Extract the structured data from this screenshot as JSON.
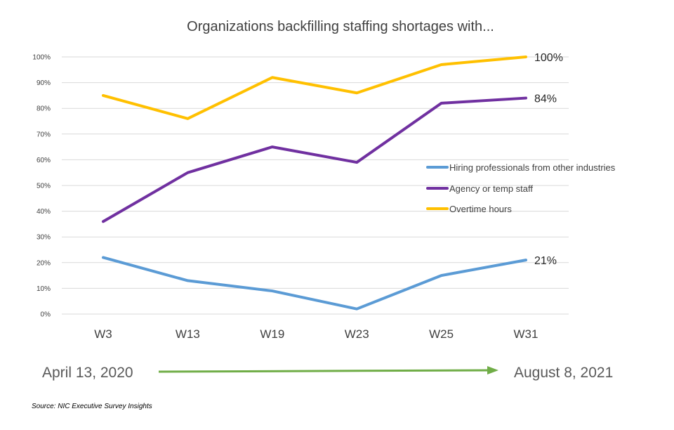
{
  "chart_data": {
    "type": "line",
    "title": "Organizations backfilling staffing shortages with...",
    "categories": [
      "W3",
      "W13",
      "W19",
      "W23",
      "W25",
      "W31"
    ],
    "y_ticks": [
      "0%",
      "10%",
      "20%",
      "30%",
      "40%",
      "50%",
      "60%",
      "70%",
      "80%",
      "90%",
      "100%"
    ],
    "ylim": [
      0,
      100
    ],
    "grid": true,
    "legend_position": "right",
    "series": [
      {
        "name": "Hiring professionals from other industries",
        "color": "#5B9BD5",
        "values": [
          22,
          13,
          9,
          2,
          15,
          21
        ],
        "end_label": "21%"
      },
      {
        "name": "Agency or temp staff",
        "color": "#7030A0",
        "values": [
          36,
          55,
          65,
          59,
          82,
          84
        ],
        "end_label": "84%"
      },
      {
        "name": "Overtime hours",
        "color": "#FFC000",
        "values": [
          85,
          76,
          92,
          86,
          97,
          100
        ],
        "end_label": "100%"
      }
    ],
    "timeline": {
      "start_label": "April 13, 2020",
      "end_label": "August 8, 2021",
      "arrow_color": "#70AD47"
    },
    "source": "Source: NIC Executive Survey Insights"
  }
}
